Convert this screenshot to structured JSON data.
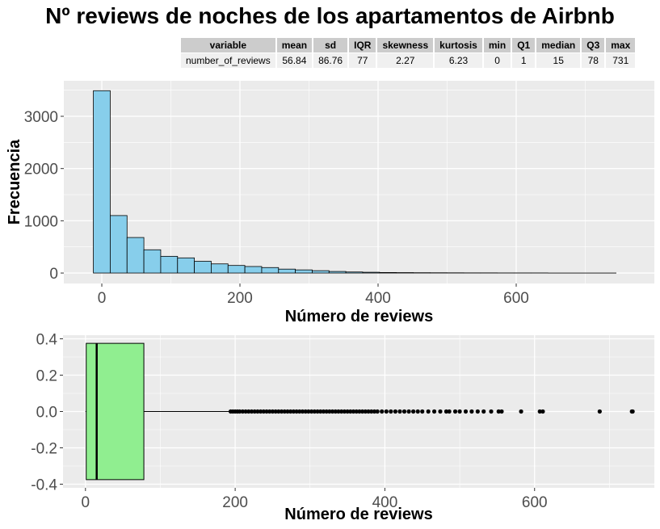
{
  "title": "Nº reviews de noches de los apartamentos de Airbnb",
  "stats_table": {
    "headers": [
      "variable",
      "mean",
      "sd",
      "IQR",
      "skewness",
      "kurtosis",
      "min",
      "Q1",
      "median",
      "Q3",
      "max"
    ],
    "row": [
      "number_of_reviews",
      "56.84",
      "86.76",
      "77",
      "2.27",
      "6.23",
      "0",
      "1",
      "15",
      "78",
      "731"
    ]
  },
  "colors": {
    "panel_bg": "#ebebeb",
    "grid": "#ffffff",
    "hist_fill": "#87ceeb",
    "box_fill": "#90ee90",
    "outline": "#000000"
  },
  "chart_data": [
    {
      "type": "bar",
      "subtype": "histogram",
      "xlabel": "Número de reviews",
      "ylabel": "Frecuencia",
      "bin_width": 24.37,
      "bins_start": -12.2,
      "values": [
        3490,
        1100,
        680,
        445,
        320,
        290,
        225,
        175,
        145,
        125,
        105,
        75,
        60,
        45,
        30,
        20,
        15,
        10,
        8,
        6,
        5,
        4,
        3,
        3,
        2,
        2,
        2
      ],
      "x_ticks": [
        0,
        200,
        400,
        600
      ],
      "y_ticks": [
        0,
        1000,
        2000,
        3000
      ],
      "xlim": [
        -55,
        800
      ],
      "ylim": [
        -200,
        3680
      ],
      "grid": true
    },
    {
      "type": "boxplot",
      "orientation": "horizontal",
      "xlabel": "Número de reviews",
      "ylabel": "",
      "min": 0,
      "q1": 1,
      "median": 15,
      "q3": 78,
      "whisker_high": 192,
      "outliers": [
        194,
        197,
        200,
        203,
        206,
        210,
        214,
        218,
        222,
        226,
        230,
        234,
        238,
        242,
        246,
        250,
        254,
        258,
        262,
        266,
        270,
        274,
        278,
        282,
        286,
        290,
        294,
        298,
        302,
        306,
        310,
        314,
        318,
        322,
        326,
        330,
        334,
        338,
        342,
        346,
        350,
        354,
        358,
        362,
        366,
        370,
        374,
        378,
        382,
        386,
        390,
        396,
        402,
        408,
        414,
        420,
        426,
        432,
        438,
        444,
        450,
        458,
        466,
        474,
        482,
        486,
        494,
        500,
        508,
        516,
        524,
        532,
        542,
        552,
        556,
        582,
        607,
        611,
        687,
        730,
        731
      ],
      "x_ticks": [
        0,
        200,
        400,
        600
      ],
      "y_ticks": [
        -0.4,
        -0.2,
        0.0,
        0.2,
        0.4
      ],
      "y_tick_labels": [
        "-0.4",
        "-0.2",
        "0.0",
        "0.2",
        "0.4"
      ],
      "xlim": [
        -30,
        760
      ],
      "ylim": [
        -0.42,
        0.42
      ],
      "box_ymin": -0.375,
      "box_ymax": 0.375,
      "grid": true
    }
  ]
}
